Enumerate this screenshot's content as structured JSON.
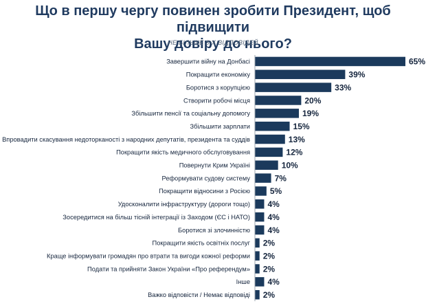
{
  "title_line1": "Що в першу чергу повинен зробити Президент, щоб підвищити",
  "title_line2": "Вашу довіру до нього?",
  "subtitle": "НЕ БІЛЬШЕ 3-Х ВІДПОВІДЕЙ",
  "colors": {
    "bar": "#1b3a5c",
    "axis": "#9aa3ad"
  },
  "chart_data": {
    "type": "bar",
    "orientation": "horizontal",
    "title": "Що в першу чергу повинен зробити Президент, щоб підвищити Вашу довіру до нього?",
    "subtitle": "НЕ БІЛЬШЕ 3-Х ВІДПОВІДЕЙ",
    "unit": "%",
    "xlim": [
      0,
      65
    ],
    "categories": [
      "Завершити війну на Донбасі",
      "Покращити економіку",
      "Боротися з корупцією",
      "Створити робочі місця",
      "Збільшити пенсії та соціальну допомогу",
      "Збільшити зарплати",
      "Впровадити скасування недоторканості з народних депутатів, президента та суддів",
      "Покращити якість медичного обслуговування",
      "Повернути Крим Україні",
      "Реформувати судову систему",
      "Покращити відносини з Росією",
      "Удосконалити інфраструктуру (дороги тощо)",
      "Зосередитися на більш тісній інтеграції із Заходом (ЄС і НАТО)",
      "Боротися зі злочинністю",
      "Покращити якість освітніх послуг",
      "Краще інформувати громадян про втрати та вигоди кожної реформи",
      "Подати та прийняти Закон України «Про референдум»",
      "Інше",
      "Важко відповісти / Немає відповіді"
    ],
    "values": [
      65,
      39,
      33,
      20,
      19,
      15,
      13,
      12,
      10,
      7,
      5,
      4,
      4,
      4,
      2,
      2,
      2,
      4,
      2
    ],
    "value_labels": [
      "65%",
      "39%",
      "33%",
      "20%",
      "19%",
      "15%",
      "13%",
      "12%",
      "10%",
      "7%",
      "5%",
      "4%",
      "4%",
      "4%",
      "2%",
      "2%",
      "2%",
      "4%",
      "2%"
    ]
  }
}
